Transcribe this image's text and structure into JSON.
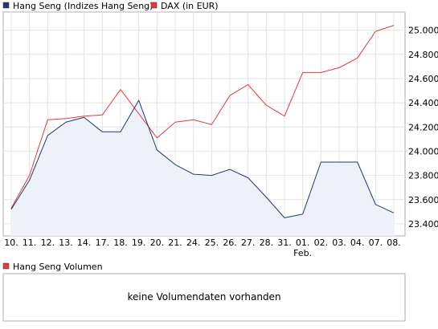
{
  "chart_data": [
    {
      "type": "line",
      "title": "",
      "xlabel": "",
      "ylabel": "",
      "categories": [
        "10.",
        "11.",
        "12.",
        "13.",
        "14.",
        "17.",
        "18.",
        "19.",
        "20.",
        "21.",
        "24.",
        "25.",
        "26.",
        "27.",
        "28.",
        "31.",
        "01.",
        "02.",
        "03.",
        "04.",
        "07.",
        "08."
      ],
      "month_label": "Feb.",
      "month_label_under": "01.",
      "ylim": [
        23300,
        25150
      ],
      "yticks": [
        23400,
        23600,
        23800,
        24000,
        24200,
        24400,
        24600,
        24800,
        25000
      ],
      "ytick_labels": [
        "23.400",
        "23.600",
        "23.800",
        "24.000",
        "24.200",
        "24.400",
        "24.600",
        "24.800",
        "25.000"
      ],
      "grid": true,
      "legend_position": "top-left",
      "series": [
        {
          "name": "Hang Seng (Indizes Hang Seng)",
          "color": "#1f3b6e",
          "fill": "#eef0fa",
          "values": [
            23520,
            23760,
            24130,
            24240,
            24280,
            24160,
            24160,
            24420,
            24010,
            23890,
            23810,
            23800,
            23850,
            23780,
            23620,
            23450,
            23480,
            23910,
            23910,
            23910,
            23560,
            23490
          ]
        },
        {
          "name": "DAX (in EUR)",
          "color": "#e8383a",
          "values": [
            23530,
            23800,
            24260,
            24270,
            24290,
            24300,
            24510,
            24310,
            24110,
            24240,
            24260,
            24220,
            24460,
            24550,
            24380,
            24290,
            24650,
            24650,
            24690,
            24770,
            24990,
            25040
          ]
        }
      ]
    },
    {
      "type": "bar",
      "title": "",
      "series": [
        {
          "name": "Hang Seng Volumen",
          "color": "#e8383a",
          "values": []
        }
      ],
      "empty_message": "keine Volumendaten vorhanden"
    }
  ]
}
